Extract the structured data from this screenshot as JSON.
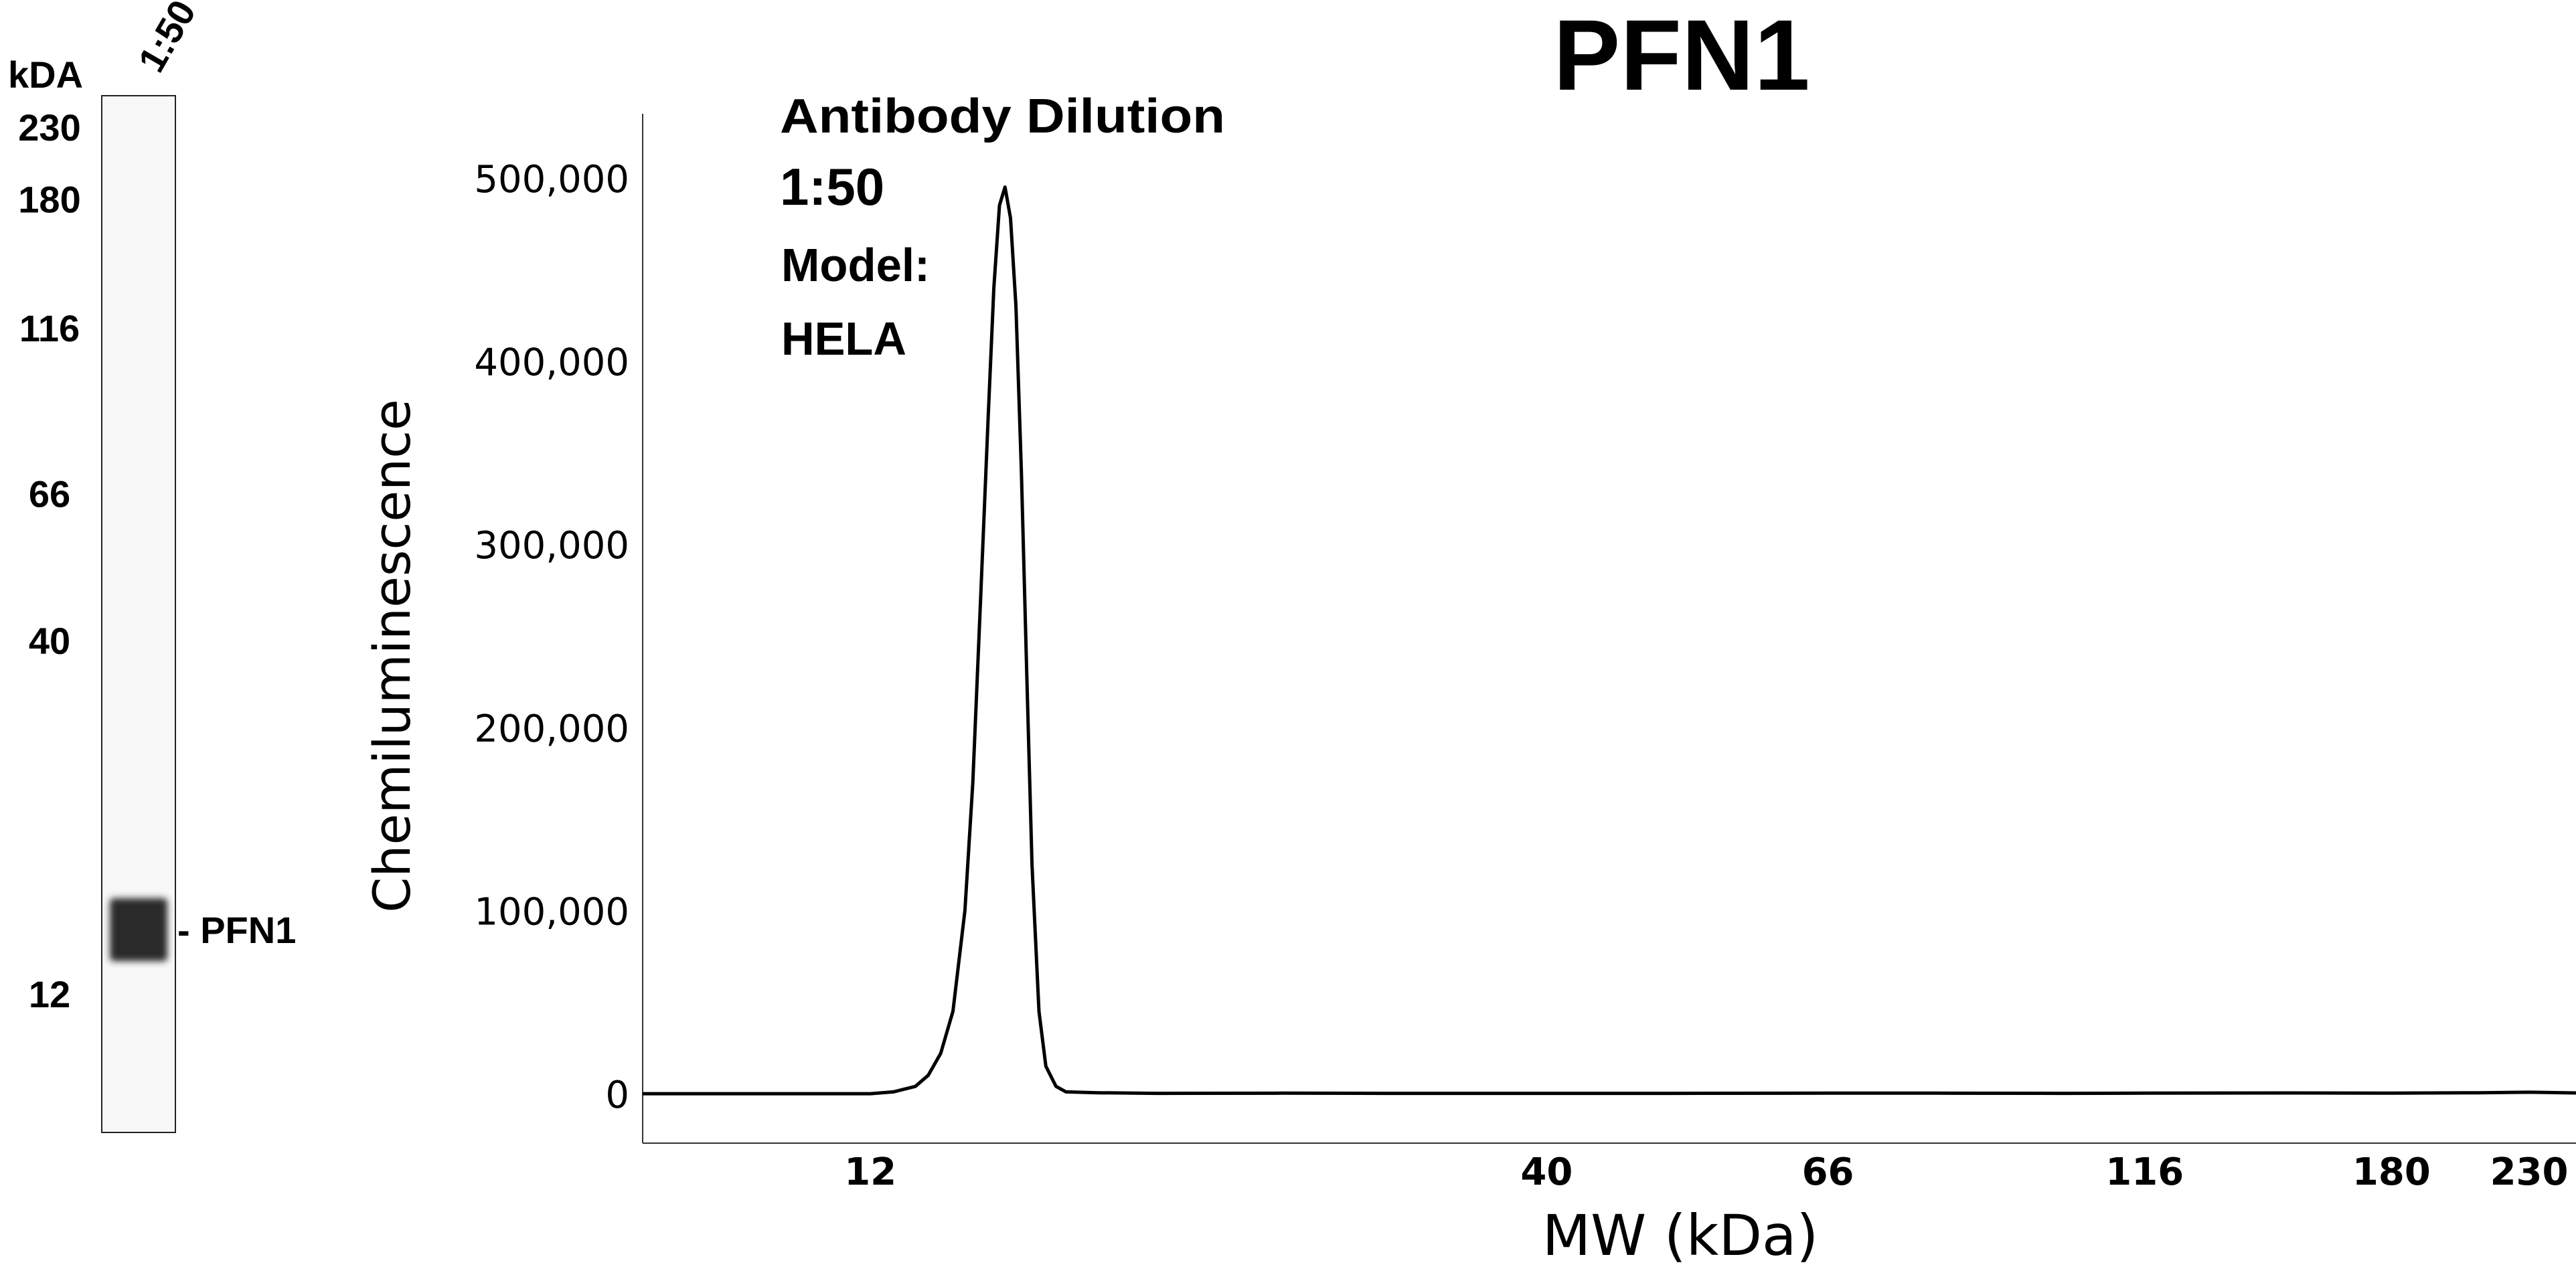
{
  "chart_data": [
    {
      "type": "blot",
      "title": "",
      "lane_label": "1:50",
      "unit_label": "kDA",
      "ladder": [
        "230",
        "180",
        "116",
        "66",
        "40",
        "12"
      ],
      "band": {
        "label": "- PFN1",
        "mw_kda": 15
      }
    },
    {
      "type": "line",
      "title": "PFN1",
      "xlabel": "MW (kDa)",
      "ylabel": "Chemiluminescence",
      "x_scale": "log",
      "xlim": [
        8,
        250
      ],
      "ylim": [
        -27000,
        535000
      ],
      "x_ticks": [
        {
          "label": "12",
          "value": 12
        },
        {
          "label": "40",
          "value": 40
        },
        {
          "label": "66",
          "value": 66
        },
        {
          "label": "116",
          "value": 116
        },
        {
          "label": "180",
          "value": 180
        },
        {
          "label": "230",
          "value": 230
        }
      ],
      "y_ticks": [
        {
          "label": "0",
          "value": 0
        },
        {
          "label": "100,000",
          "value": 100000
        },
        {
          "label": "200,000",
          "value": 200000
        },
        {
          "label": "300,000",
          "value": 300000
        },
        {
          "label": "400,000",
          "value": 400000
        },
        {
          "label": "500,000",
          "value": 500000
        }
      ],
      "annotation": {
        "line1": "Antibody Dilution",
        "line2": "1:50",
        "line3": "Model:",
        "line4": "HELA"
      },
      "series": [
        {
          "x": [
            8,
            10,
            12,
            12.5,
            13,
            13.3,
            13.6,
            13.9,
            14.2,
            14.4,
            14.6,
            14.8,
            14.95,
            15.1,
            15.25,
            15.4,
            15.55,
            15.7,
            15.85,
            16.0,
            16.2,
            16.4,
            16.7,
            17.0,
            18,
            20,
            25,
            30,
            40,
            50,
            66,
            80,
            100,
            116,
            150,
            180,
            210,
            230,
            250
          ],
          "y": [
            0,
            0,
            0,
            1000,
            4000,
            10000,
            22000,
            45000,
            100000,
            170000,
            270000,
            370000,
            440000,
            485000,
            495000,
            478000,
            430000,
            340000,
            230000,
            125000,
            45000,
            15000,
            4000,
            1000,
            500,
            200,
            300,
            200,
            200,
            200,
            300,
            300,
            200,
            300,
            400,
            300,
            500,
            800,
            400
          ]
        }
      ]
    }
  ]
}
